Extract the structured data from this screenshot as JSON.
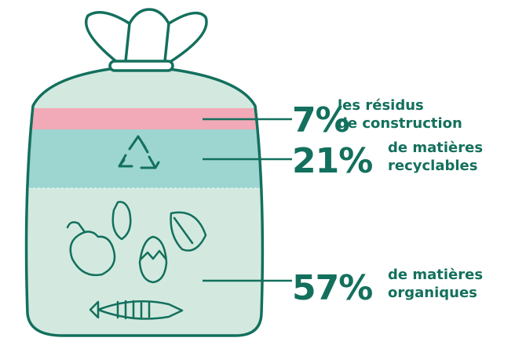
{
  "segments": [
    {
      "percent": "7%",
      "label_lines": [
        "les résidus",
        "de construction"
      ]
    },
    {
      "percent": "21%",
      "label_lines": [
        "de matières",
        "recyclables"
      ]
    },
    {
      "percent": "57%",
      "label_lines": [
        "de matières",
        "organiques"
      ]
    }
  ]
}
